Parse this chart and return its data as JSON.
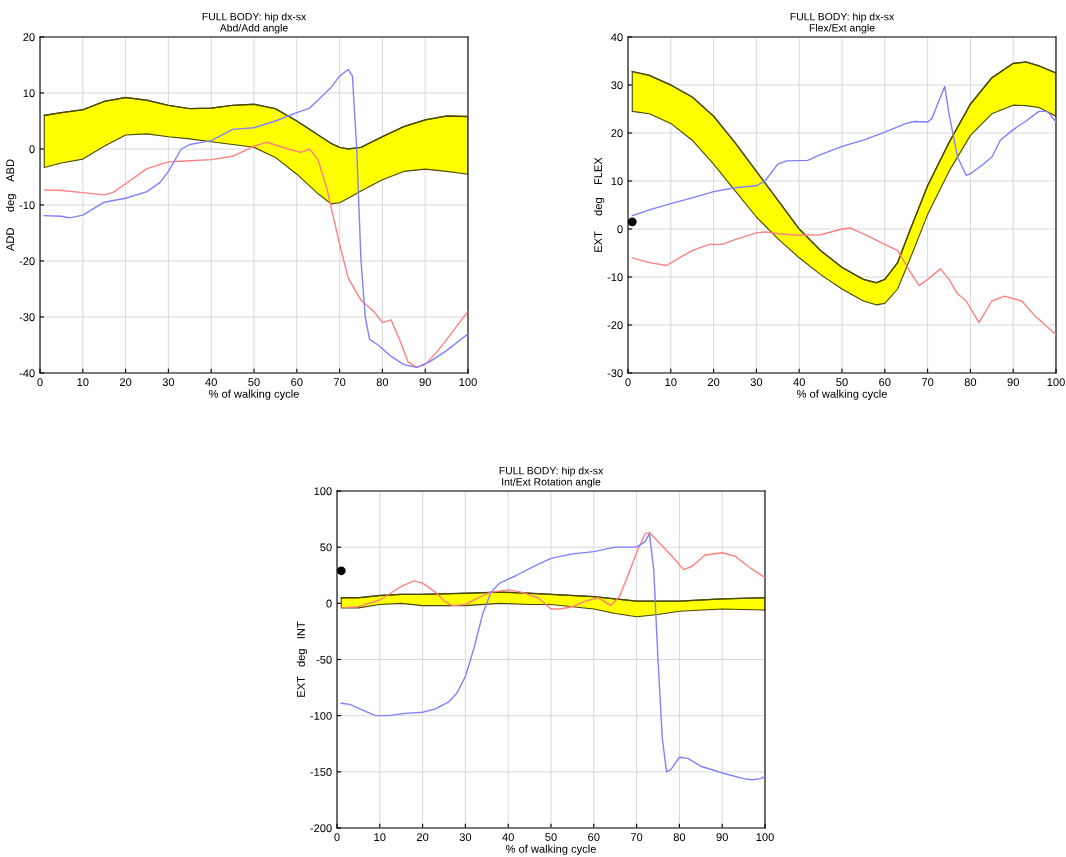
{
  "chart_data": [
    {
      "type": "line",
      "title": "FULL BODY: hip dx-sx\nAbd/Add angle",
      "xlabel": "% of walking cycle",
      "ylabel": "ADD     deg    ABD",
      "xlim": [
        0,
        100
      ],
      "xticks": [
        0,
        10,
        20,
        30,
        40,
        50,
        60,
        70,
        80,
        90,
        100
      ],
      "ylim": [
        -40,
        20
      ],
      "yticks": [
        -40,
        -30,
        -20,
        -10,
        0,
        10,
        20
      ],
      "grid": true,
      "series": [
        {
          "color": "#4a4a00",
          "x": [
            1,
            5,
            10,
            15,
            20,
            25,
            30,
            35,
            40,
            45,
            50,
            55,
            60,
            65,
            68,
            70,
            72,
            75,
            80,
            85,
            90,
            95,
            100
          ],
          "lower": [
            -3.3,
            -2.5,
            -1.8,
            0.5,
            2.5,
            2.7,
            2.2,
            1.8,
            1.3,
            0.8,
            0.3,
            -1.5,
            -4.5,
            -8,
            -9.8,
            -9.6,
            -8.8,
            -7.5,
            -5.5,
            -4,
            -3.6,
            -4,
            -4.5
          ],
          "upper": [
            6,
            6.5,
            7,
            8.5,
            9.2,
            8.7,
            7.8,
            7.2,
            7.3,
            7.8,
            8,
            7.2,
            5,
            2.5,
            1,
            0.3,
            0,
            0.3,
            2.2,
            4,
            5.2,
            5.9,
            5.8
          ],
          "values": [
            6,
            6.5,
            7,
            8.5,
            9.2,
            8.7,
            7.8,
            7.2,
            7.3,
            7.8,
            8,
            7.2,
            5,
            2.5,
            1,
            0.3,
            0,
            0.3,
            2.2,
            4,
            5.2,
            5.9,
            5.8
          ]
        },
        {
          "color": "#ff8080",
          "x": [
            1,
            5,
            10,
            15,
            17,
            20,
            25,
            30,
            35,
            40,
            45,
            50,
            53,
            58,
            61,
            63,
            65,
            67,
            70,
            72,
            75,
            78,
            80,
            82,
            84,
            86,
            88,
            90,
            93,
            96,
            100
          ],
          "values": [
            -7.3,
            -7.4,
            -7.8,
            -8.2,
            -7.8,
            -6.2,
            -3.5,
            -2.3,
            -2.1,
            -1.9,
            -1.3,
            0.5,
            1.2,
            0,
            -0.6,
            0,
            -2,
            -7,
            -17,
            -23,
            -27,
            -29,
            -31,
            -30.5,
            -34,
            -38,
            -39,
            -38.5,
            -36,
            -33,
            -29
          ]
        },
        {
          "color": "#8080ff",
          "x": [
            1,
            5,
            7,
            10,
            15,
            20,
            25,
            28,
            30,
            33,
            35,
            40,
            45,
            50,
            55,
            60,
            63,
            66,
            68,
            70,
            72,
            73,
            74,
            75,
            76,
            77,
            79,
            82,
            85,
            88,
            91,
            95,
            100
          ],
          "values": [
            -11.9,
            -12,
            -12.3,
            -11.8,
            -9.5,
            -8.8,
            -7.6,
            -6,
            -4,
            0,
            0.8,
            1.5,
            3.5,
            3.8,
            5,
            6.5,
            7.3,
            9.5,
            11,
            13,
            14.2,
            13,
            0,
            -20,
            -30,
            -34,
            -35,
            -37,
            -38.5,
            -39,
            -38,
            -36,
            -33
          ]
        }
      ]
    },
    {
      "type": "line",
      "title": "FULL BODY: hip dx-sx\nFlex/Ext angle",
      "xlabel": "% of walking cycle",
      "ylabel": "EXT     deg    FLEX",
      "xlim": [
        0,
        100
      ],
      "xticks": [
        0,
        10,
        20,
        30,
        40,
        50,
        60,
        70,
        80,
        90,
        100
      ],
      "ylim": [
        -30,
        40
      ],
      "yticks": [
        -30,
        -20,
        -10,
        0,
        10,
        20,
        30,
        40
      ],
      "grid": true,
      "series": [
        {
          "color": "#4a4a00",
          "x": [
            1,
            5,
            10,
            15,
            20,
            25,
            30,
            35,
            40,
            45,
            50,
            55,
            58,
            60,
            63,
            66,
            70,
            75,
            80,
            85,
            90,
            93,
            96,
            100
          ],
          "lower": [
            24.5,
            24,
            22,
            18.5,
            13.5,
            8,
            2.5,
            -2,
            -6,
            -9.5,
            -12.5,
            -15,
            -15.8,
            -15.5,
            -12.5,
            -6,
            3,
            12,
            19.5,
            24,
            25.8,
            25.7,
            25.3,
            23.5
          ],
          "upper": [
            32.8,
            32,
            30,
            27.5,
            23.5,
            18,
            12,
            6,
            0,
            -4.5,
            -8,
            -10.5,
            -11.2,
            -10.5,
            -7,
            0,
            9,
            18,
            26,
            31.5,
            34.5,
            34.8,
            34,
            32.5
          ],
          "values": [
            32.8,
            32,
            30,
            27.5,
            23.5,
            18,
            12,
            6,
            0,
            -4.5,
            -8,
            -10.5,
            -11.2,
            -10.5,
            -7,
            0,
            9,
            18,
            26,
            31.5,
            34.5,
            34.8,
            34,
            32.5
          ]
        },
        {
          "color": "#ff8080",
          "x": [
            1,
            5,
            9,
            12,
            15,
            19,
            22,
            25,
            30,
            32,
            35,
            40,
            45,
            50,
            52,
            55,
            60,
            63,
            66,
            68,
            70,
            73,
            75,
            77,
            79,
            82,
            85,
            88,
            92,
            95,
            100
          ],
          "values": [
            -6,
            -7,
            -7.6,
            -6,
            -4.5,
            -3.2,
            -3.2,
            -2.2,
            -0.8,
            -0.6,
            -1,
            -1.3,
            -1.2,
            0,
            0.2,
            -1,
            -3.2,
            -4.5,
            -9,
            -11.8,
            -10.5,
            -8.3,
            -10.5,
            -13.5,
            -15,
            -19.5,
            -15,
            -14,
            -15,
            -18,
            -22
          ]
        },
        {
          "color": "#8080ff",
          "x": [
            1,
            5,
            10,
            15,
            20,
            25,
            30,
            32,
            35,
            37,
            42,
            45,
            50,
            55,
            60,
            65,
            67,
            70,
            71,
            73,
            74,
            75,
            77,
            79,
            80,
            83,
            85,
            87,
            90,
            93,
            96,
            98,
            100
          ],
          "values": [
            2.8,
            4,
            5.3,
            6.5,
            7.8,
            8.6,
            9,
            10,
            13.5,
            14.2,
            14.3,
            15.5,
            17.2,
            18.5,
            20.2,
            22,
            22.4,
            22.3,
            23,
            27.5,
            29.7,
            24,
            15,
            11.2,
            11.5,
            13.5,
            15,
            18.5,
            20.7,
            22.5,
            24.5,
            24.5,
            22.3
          ]
        },
        {
          "type": "scatter",
          "color": "#000000",
          "marker": "circle",
          "x": [
            1
          ],
          "values": [
            1.5
          ]
        }
      ]
    },
    {
      "type": "line",
      "title": "FULL BODY: hip dx-sx\nInt/Ext Rotation angle",
      "xlabel": "% of walking cycle",
      "ylabel": "EXT   deg   INT",
      "xlim": [
        0,
        100
      ],
      "xticks": [
        0,
        10,
        20,
        30,
        40,
        50,
        60,
        70,
        80,
        90,
        100
      ],
      "ylim": [
        -200,
        100
      ],
      "yticks": [
        -200,
        -150,
        -100,
        -50,
        0,
        50,
        100
      ],
      "grid": true,
      "series": [
        {
          "color": "#4a4a00",
          "x": [
            1,
            5,
            10,
            15,
            20,
            30,
            38,
            45,
            50,
            60,
            65,
            70,
            75,
            80,
            90,
            100
          ],
          "lower": [
            -4,
            -4,
            -1,
            0,
            -2,
            -2,
            0,
            -1,
            -1,
            -5,
            -9,
            -12,
            -10,
            -7,
            -5,
            -6
          ],
          "upper": [
            5,
            5,
            7,
            8,
            8,
            9,
            10,
            9,
            8,
            6,
            4,
            2,
            2,
            2,
            4,
            5
          ],
          "values": [
            5,
            5,
            7,
            8,
            8,
            9,
            10,
            9,
            8,
            6,
            4,
            2,
            2,
            2,
            4,
            5
          ]
        },
        {
          "color": "#ff8080",
          "x": [
            1,
            5,
            10,
            15,
            18,
            20,
            23,
            25,
            27,
            30,
            33,
            36,
            40,
            43,
            47,
            50,
            52,
            55,
            58,
            61,
            64,
            66,
            68,
            70,
            72,
            73,
            75,
            78,
            81,
            83,
            86,
            90,
            93,
            96,
            100
          ],
          "values": [
            -4,
            -3,
            3,
            15,
            20,
            18,
            10,
            2,
            -2,
            -1,
            5,
            10,
            12,
            10,
            5,
            -5,
            -5,
            -3,
            2,
            5,
            -2,
            6,
            25,
            45,
            62,
            63,
            55,
            43,
            30,
            33,
            43,
            45,
            42,
            33,
            23
          ]
        },
        {
          "color": "#8080ff",
          "x": [
            1,
            3,
            6,
            9,
            12,
            16,
            20,
            23,
            26,
            28,
            30,
            32,
            34,
            36,
            38,
            42,
            46,
            50,
            55,
            60,
            65,
            68,
            70,
            72,
            73,
            74,
            75,
            76,
            77,
            78,
            80,
            82,
            85,
            90,
            95,
            97,
            99,
            100
          ],
          "values": [
            -89,
            -90,
            -95,
            -100,
            -100,
            -98,
            -97,
            -94,
            -88,
            -80,
            -65,
            -40,
            -10,
            10,
            18,
            25,
            33,
            40,
            44,
            46,
            50,
            50,
            50,
            55,
            62,
            30,
            -50,
            -120,
            -150,
            -148,
            -137,
            -138,
            -145,
            -151,
            -156,
            -157,
            -156,
            -154
          ]
        },
        {
          "type": "scatter",
          "color": "#000000",
          "marker": "circle",
          "x": [
            1
          ],
          "values": [
            29
          ]
        }
      ]
    }
  ]
}
